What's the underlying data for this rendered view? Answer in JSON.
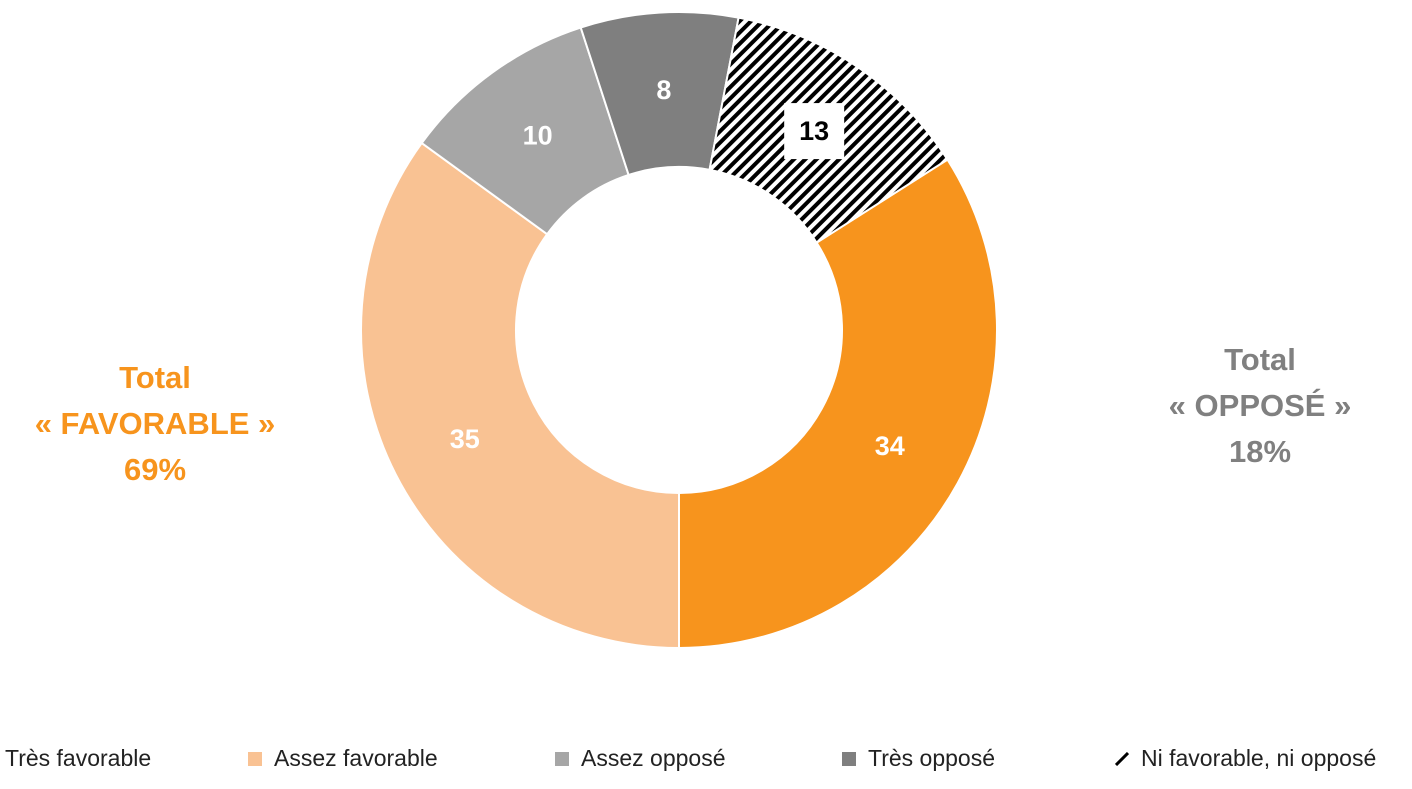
{
  "chart_data": {
    "type": "pie",
    "donut": true,
    "title": "",
    "slices": [
      {
        "label": "Très favorable",
        "value": 34,
        "color": "#F7941D",
        "pattern": "solid",
        "label_color": "#ffffff"
      },
      {
        "label": "Assez favorable",
        "value": 35,
        "color": "#F9C293",
        "pattern": "solid",
        "label_color": "#ffffff"
      },
      {
        "label": "Assez opposé",
        "value": 10,
        "color": "#A6A6A6",
        "pattern": "solid",
        "label_color": "#ffffff"
      },
      {
        "label": "Très opposé",
        "value": 8,
        "color": "#7F7F7F",
        "pattern": "solid",
        "label_color": "#ffffff"
      },
      {
        "label": "Ni favorable, ni opposé",
        "value": 13,
        "color": "#000000",
        "pattern": "diagonal-hatch",
        "label_color": "#000000"
      }
    ],
    "legend_position": "bottom",
    "annotations": {
      "favorable": {
        "line1": "Total",
        "line2": "« FAVORABLE »",
        "line3": "69%",
        "color": "#F7941D"
      },
      "oppose": {
        "line1": "Total",
        "line2": "« OPPOSÉ »",
        "line3": "18%",
        "color": "#808080"
      }
    }
  },
  "legend": {
    "items": [
      {
        "label": "Très favorable",
        "color": "#F7941D",
        "pattern": "solid"
      },
      {
        "label": "Assez favorable",
        "color": "#F9C293",
        "pattern": "solid"
      },
      {
        "label": "Assez opposé",
        "color": "#A6A6A6",
        "pattern": "solid"
      },
      {
        "label": "Très opposé",
        "color": "#7F7F7F",
        "pattern": "solid"
      },
      {
        "label": "Ni favorable, ni opposé",
        "color": "#000000",
        "pattern": "diagonal-hatch"
      }
    ]
  }
}
